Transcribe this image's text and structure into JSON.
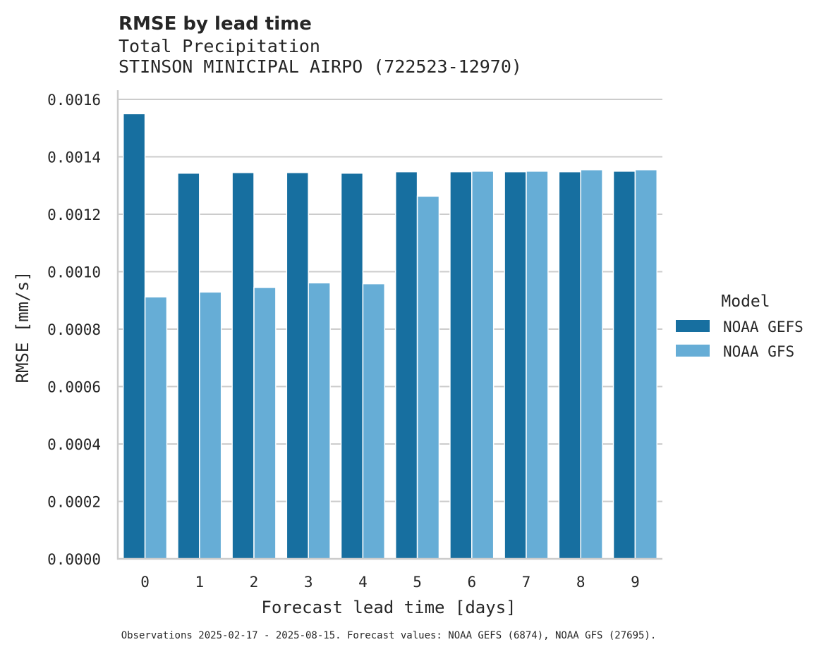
{
  "chart_data": {
    "type": "bar",
    "title": "RMSE by lead time",
    "subtitle_lines": [
      "Total Precipitation",
      "STINSON MINICIPAL AIRPO (722523-12970)"
    ],
    "xlabel": "Forecast lead time [days]",
    "ylabel": "RMSE [mm/s]",
    "categories": [
      "0",
      "1",
      "2",
      "3",
      "4",
      "5",
      "6",
      "7",
      "8",
      "9"
    ],
    "ylim": [
      0,
      0.0016
    ],
    "yticks": [
      "0.0000",
      "0.0002",
      "0.0004",
      "0.0006",
      "0.0008",
      "0.0010",
      "0.0012",
      "0.0014",
      "0.0016"
    ],
    "grid": "horizontal",
    "legend": {
      "title": "Model",
      "placement": "right"
    },
    "series": [
      {
        "name": "NOAA GEFS",
        "color": "#176fa0",
        "values": [
          0.00155,
          0.001343,
          0.001345,
          0.001345,
          0.001343,
          0.001348,
          0.001348,
          0.001348,
          0.001348,
          0.00135
        ]
      },
      {
        "name": "NOAA GFS",
        "color": "#66add6",
        "values": [
          0.000912,
          0.000929,
          0.000945,
          0.000961,
          0.000958,
          0.001263,
          0.00135,
          0.00135,
          0.001355,
          0.001355
        ]
      }
    ],
    "footnote": "Observations 2025-02-17 - 2025-08-15. Forecast values: NOAA GEFS (6874), NOAA GFS (27695)."
  }
}
